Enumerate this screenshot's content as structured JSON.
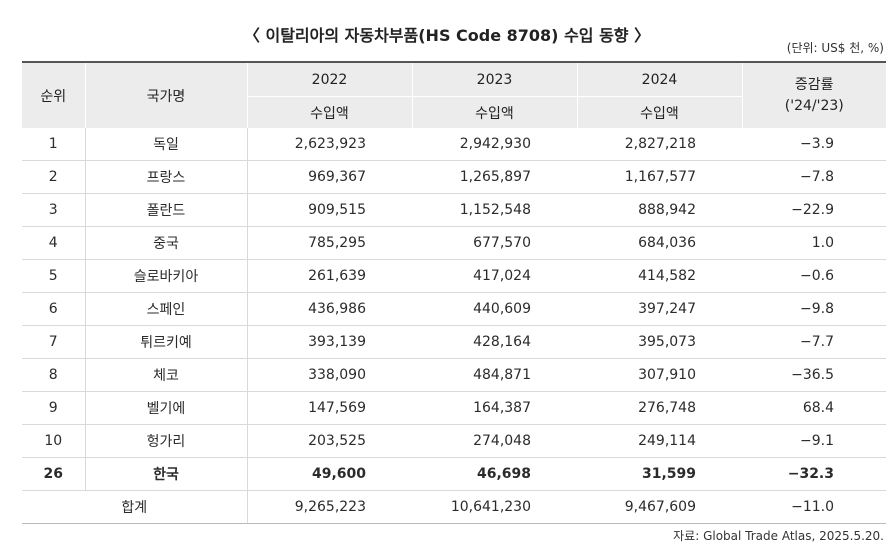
{
  "title": "〈 이탈리아의 자동차부품(HS Code 8708) 수입 동향 〉",
  "unit_note": "(단위: US$ 천, %)",
  "source": "자료: Global Trade Atlas, 2025.5.20.",
  "headers": {
    "rank": "순위",
    "country": "국가명",
    "years": [
      "2022",
      "2023",
      "2024"
    ],
    "sub": "수입액",
    "change_line1": "증감률",
    "change_line2": "('24/'23)"
  },
  "rows": [
    {
      "rank": "1",
      "country": "독일",
      "v2022": "2,623,923",
      "v2023": "2,942,930",
      "v2024": "2,827,218",
      "change": "−3.9"
    },
    {
      "rank": "2",
      "country": "프랑스",
      "v2022": "969,367",
      "v2023": "1,265,897",
      "v2024": "1,167,577",
      "change": "−7.8"
    },
    {
      "rank": "3",
      "country": "폴란드",
      "v2022": "909,515",
      "v2023": "1,152,548",
      "v2024": "888,942",
      "change": "−22.9"
    },
    {
      "rank": "4",
      "country": "중국",
      "v2022": "785,295",
      "v2023": "677,570",
      "v2024": "684,036",
      "change": "1.0"
    },
    {
      "rank": "5",
      "country": "슬로바키아",
      "v2022": "261,639",
      "v2023": "417,024",
      "v2024": "414,582",
      "change": "−0.6"
    },
    {
      "rank": "6",
      "country": "스페인",
      "v2022": "436,986",
      "v2023": "440,609",
      "v2024": "397,247",
      "change": "−9.8"
    },
    {
      "rank": "7",
      "country": "튀르키예",
      "v2022": "393,139",
      "v2023": "428,164",
      "v2024": "395,073",
      "change": "−7.7"
    },
    {
      "rank": "8",
      "country": "체코",
      "v2022": "338,090",
      "v2023": "484,871",
      "v2024": "307,910",
      "change": "−36.5"
    },
    {
      "rank": "9",
      "country": "벨기에",
      "v2022": "147,569",
      "v2023": "164,387",
      "v2024": "276,748",
      "change": "68.4"
    },
    {
      "rank": "10",
      "country": "헝가리",
      "v2022": "203,525",
      "v2023": "274,048",
      "v2024": "249,114",
      "change": "−9.1"
    }
  ],
  "korea": {
    "rank": "26",
    "country": "한국",
    "v2022": "49,600",
    "v2023": "46,698",
    "v2024": "31,599",
    "change": "−32.3"
  },
  "total": {
    "label": "합계",
    "v2022": "9,265,223",
    "v2023": "10,641,230",
    "v2024": "9,467,609",
    "change": "−11.0"
  }
}
